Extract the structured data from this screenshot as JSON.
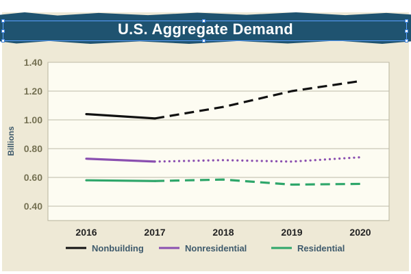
{
  "title": "U.S. Aggregate Demand",
  "colors": {
    "banner": "#1f5370",
    "card": "#eee9d6",
    "plot_bg": "#fdfcf2",
    "axis_text": "#757153",
    "label_text": "#3e5a6c",
    "nonbuilding": "#111111",
    "nonresidential": "#8a4fb0",
    "residential": "#2ea66a"
  },
  "chart_data": {
    "type": "line",
    "title": "U.S. Aggregate Demand",
    "xlabel": "",
    "ylabel": "Billions",
    "categories": [
      "2016",
      "2017",
      "2018",
      "2019",
      "2020"
    ],
    "x": [
      2016,
      2017,
      2018,
      2019,
      2020
    ],
    "ylim": [
      0.3,
      1.4
    ],
    "yticks": [
      0.4,
      0.6,
      0.8,
      1.0,
      1.2,
      1.4
    ],
    "ytick_labels": [
      "0.40",
      "0.60",
      "0.80",
      "1.00",
      "1.20",
      "1.40"
    ],
    "grid": true,
    "legend_position": "bottom",
    "actual_through": 2017,
    "series": [
      {
        "name": "Nonbuilding",
        "color": "#111111",
        "forecast_style": "dashed",
        "values": [
          1.04,
          1.01,
          1.09,
          1.2,
          1.27
        ]
      },
      {
        "name": "Nonresidential",
        "color": "#8a4fb0",
        "forecast_style": "dotted",
        "values": [
          0.73,
          0.71,
          0.72,
          0.71,
          0.74
        ]
      },
      {
        "name": "Residential",
        "color": "#2ea66a",
        "forecast_style": "dashed",
        "values": [
          0.58,
          0.575,
          0.585,
          0.55,
          0.555
        ]
      }
    ]
  }
}
